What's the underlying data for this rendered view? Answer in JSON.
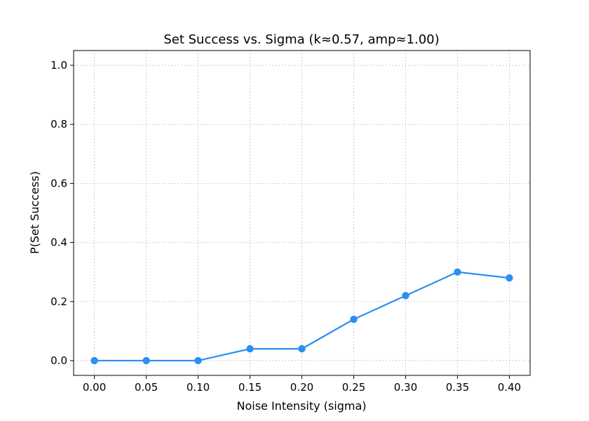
{
  "chart_data": {
    "type": "line",
    "title": "Set Success vs. Sigma (k≈0.57, amp≈1.00)",
    "xlabel": "Noise Intensity (sigma)",
    "ylabel": "P(Set Success)",
    "x": [
      0.0,
      0.05,
      0.1,
      0.15,
      0.2,
      0.25,
      0.3,
      0.35,
      0.4
    ],
    "series": [
      {
        "values": [
          0.0,
          0.0,
          0.0,
          0.04,
          0.04,
          0.14,
          0.22,
          0.3,
          0.28
        ],
        "color": "#2b8ff0"
      }
    ],
    "xticks": [
      "0.00",
      "0.05",
      "0.10",
      "0.15",
      "0.20",
      "0.25",
      "0.30",
      "0.35",
      "0.40"
    ],
    "yticks": [
      "0.0",
      "0.2",
      "0.4",
      "0.6",
      "0.8",
      "1.0"
    ],
    "xlim": [
      -0.02,
      0.42
    ],
    "ylim": [
      -0.05,
      1.05
    ],
    "grid": true,
    "marker": "circle"
  }
}
